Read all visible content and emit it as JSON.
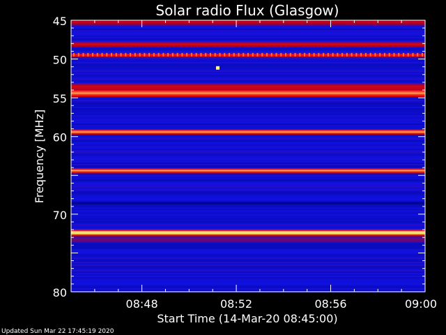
{
  "chart_data": {
    "type": "heatmap",
    "title": "Solar radio Flux (Glasgow)",
    "xlabel": "Start Time (14-Mar-20 08:45:00)",
    "ylabel": "Frequency [MHz]",
    "x_range": [
      "08:45:00",
      "09:00:00"
    ],
    "y_range_mhz": [
      45,
      80
    ],
    "y_axis_reversed": true,
    "y_ticks": [
      45,
      50,
      55,
      60,
      70,
      80
    ],
    "x_ticks": [
      "08:48",
      "08:52",
      "08:56",
      "09:00"
    ],
    "x_tick_minutes": [
      3,
      7,
      11,
      15
    ],
    "colormap": [
      "#00007a",
      "#1010e0",
      "#b00020",
      "#ff1010",
      "#ffff80"
    ],
    "background_level": 0.22,
    "bands": [
      {
        "freq_mhz": 45.1,
        "width_mhz": 0.5,
        "level": 0.55
      },
      {
        "freq_mhz": 48.0,
        "width_mhz": 0.4,
        "level": 0.6
      },
      {
        "freq_mhz": 49.4,
        "width_mhz": 0.3,
        "level": 0.75
      },
      {
        "freq_mhz": 54.3,
        "width_mhz": 0.6,
        "level": 0.88
      },
      {
        "freq_mhz": 53.5,
        "width_mhz": 0.5,
        "level": 0.6
      },
      {
        "freq_mhz": 59.3,
        "width_mhz": 0.35,
        "level": 0.9
      },
      {
        "freq_mhz": 64.3,
        "width_mhz": 0.35,
        "level": 0.9
      },
      {
        "freq_mhz": 68.5,
        "width_mhz": 0.3,
        "level": 0.05
      },
      {
        "freq_mhz": 72.3,
        "width_mhz": 0.5,
        "level": 1.0
      },
      {
        "freq_mhz": 73.2,
        "width_mhz": 0.4,
        "level": 0.4
      }
    ],
    "periodic_spikes": {
      "freq_mhz": 49.4,
      "count": 75,
      "level": 0.85
    },
    "point_events": [
      {
        "minute": 6.2,
        "freq_mhz": 51.1,
        "level": 1.0
      }
    ]
  },
  "footer": {
    "updated": "Updated Sun Mar 22 17:45:19 2020"
  }
}
